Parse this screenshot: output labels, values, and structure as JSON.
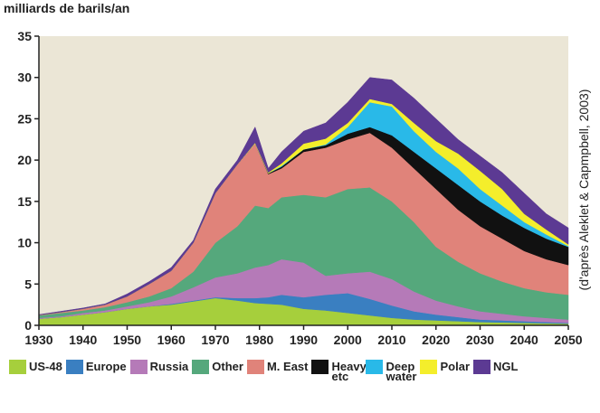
{
  "chart_data": {
    "type": "stacked_area",
    "y_label": "milliards de barils/an",
    "annotation": "(d'après Aleklet & Capmpbell, 2003)",
    "x": [
      1930,
      1935,
      1940,
      1945,
      1950,
      1955,
      1960,
      1965,
      1970,
      1975,
      1979,
      1982,
      1985,
      1990,
      1995,
      2000,
      2005,
      2010,
      2015,
      2020,
      2025,
      2030,
      2035,
      2040,
      2045,
      2050
    ],
    "xlim": [
      1930,
      2050
    ],
    "xticks": [
      1930,
      1940,
      1950,
      1960,
      1970,
      1980,
      1990,
      2000,
      2010,
      2020,
      2030,
      2040,
      2050
    ],
    "ylim": [
      0,
      35
    ],
    "yticks": [
      0,
      5,
      10,
      15,
      20,
      25,
      30,
      35
    ],
    "series": [
      {
        "name": "US-48",
        "color": "#a6cf3c",
        "values": [
          0.8,
          1.0,
          1.3,
          1.6,
          2.0,
          2.3,
          2.5,
          2.9,
          3.3,
          3.0,
          2.7,
          2.6,
          2.5,
          2.0,
          1.8,
          1.5,
          1.2,
          0.9,
          0.7,
          0.6,
          0.5,
          0.4,
          0.35,
          0.3,
          0.25,
          0.2
        ]
      },
      {
        "name": "Europe",
        "color": "#3a7fc1",
        "values": [
          0,
          0,
          0,
          0,
          0,
          0,
          0.1,
          0.1,
          0.1,
          0.3,
          0.6,
          0.8,
          1.2,
          1.4,
          1.9,
          2.4,
          2.0,
          1.5,
          1.0,
          0.7,
          0.5,
          0.3,
          0.25,
          0.2,
          0.15,
          0.1
        ]
      },
      {
        "name": "Russia",
        "color": "#b57ab8",
        "values": [
          0.1,
          0.1,
          0.2,
          0.2,
          0.3,
          0.5,
          0.9,
          1.6,
          2.4,
          3.0,
          3.7,
          3.9,
          4.3,
          4.2,
          2.3,
          2.4,
          3.3,
          3.2,
          2.4,
          1.7,
          1.3,
          1.0,
          0.8,
          0.6,
          0.5,
          0.4
        ]
      },
      {
        "name": "Other",
        "color": "#55a87c",
        "values": [
          0.3,
          0.4,
          0.3,
          0.4,
          0.5,
          0.7,
          1.0,
          1.9,
          4.2,
          5.7,
          7.5,
          6.9,
          7.5,
          8.2,
          9.5,
          10.2,
          10.2,
          9.4,
          8.4,
          6.5,
          5.4,
          4.6,
          3.9,
          3.4,
          3.1,
          3.0
        ]
      },
      {
        "name": "M. East",
        "color": "#e0837a",
        "values": [
          0.05,
          0.1,
          0.2,
          0.3,
          0.7,
          1.5,
          2.1,
          3.5,
          6.0,
          7.5,
          7.5,
          4.1,
          3.5,
          5.2,
          6.0,
          6.0,
          6.6,
          6.5,
          6.5,
          7.0,
          6.3,
          5.7,
          5.2,
          4.5,
          4.0,
          3.6
        ]
      },
      {
        "name": "Heavy etc",
        "color": "#111111",
        "values": [
          0,
          0,
          0,
          0,
          0,
          0,
          0,
          0,
          0,
          0,
          0,
          0.1,
          0.2,
          0.3,
          0.3,
          0.7,
          0.7,
          1.5,
          2.0,
          2.5,
          3.0,
          3.0,
          2.8,
          2.8,
          2.5,
          2.2
        ]
      },
      {
        "name": "Deep water",
        "color": "#29b9e8",
        "values": [
          0,
          0,
          0,
          0,
          0,
          0,
          0,
          0,
          0,
          0,
          0,
          0,
          0.1,
          0,
          0.1,
          0.8,
          3.0,
          3.5,
          2.5,
          2.0,
          2.0,
          1.5,
          1.2,
          0.7,
          0.5,
          0.1
        ]
      },
      {
        "name": "Polar",
        "color": "#f4ee2b",
        "values": [
          0,
          0,
          0,
          0,
          0,
          0,
          0,
          0,
          0,
          0,
          0.1,
          0.1,
          0.3,
          0.7,
          0.7,
          0.5,
          0.4,
          0.3,
          1.0,
          1.3,
          1.8,
          2.2,
          2.0,
          1.0,
          0.6,
          0.2
        ]
      },
      {
        "name": "NGL",
        "color": "#5c3a93",
        "values": [
          0.05,
          0.1,
          0.1,
          0.1,
          0.3,
          0.3,
          0.4,
          0.3,
          0.5,
          0.5,
          1.9,
          0.5,
          1.4,
          1.5,
          1.9,
          2.5,
          2.6,
          2.9,
          3.0,
          2.7,
          1.7,
          1.8,
          2.0,
          2.5,
          1.9,
          2.0
        ]
      }
    ]
  }
}
